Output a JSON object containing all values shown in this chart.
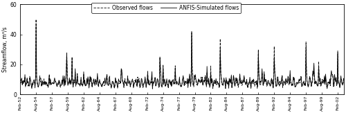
{
  "title": "",
  "ylabel": "Streamflow, m³/s",
  "ylim": [
    0,
    60
  ],
  "yticks": [
    0,
    20,
    40,
    60
  ],
  "start_year": 1952,
  "start_month": 2,
  "n_months": 613,
  "observed_color": "#000000",
  "simulated_color": "#000000",
  "background_color": "#ffffff",
  "legend_observed": "Observed flows",
  "legend_simulated": "ANFIS-Simulated flows",
  "xtick_labels": [
    "Feb-52",
    "Aug-54",
    "Feb-57",
    "Aug-59",
    "Feb-62",
    "Aug-64",
    "Feb-67",
    "Aug-69",
    "Feb-72",
    "Aug-74",
    "Feb-77",
    "Aug-79",
    "Feb-82",
    "Aug-84",
    "Feb-87",
    "Aug-89",
    "Feb-92",
    "Aug-94",
    "Feb-97",
    "Aug-99",
    "Feb-02"
  ]
}
